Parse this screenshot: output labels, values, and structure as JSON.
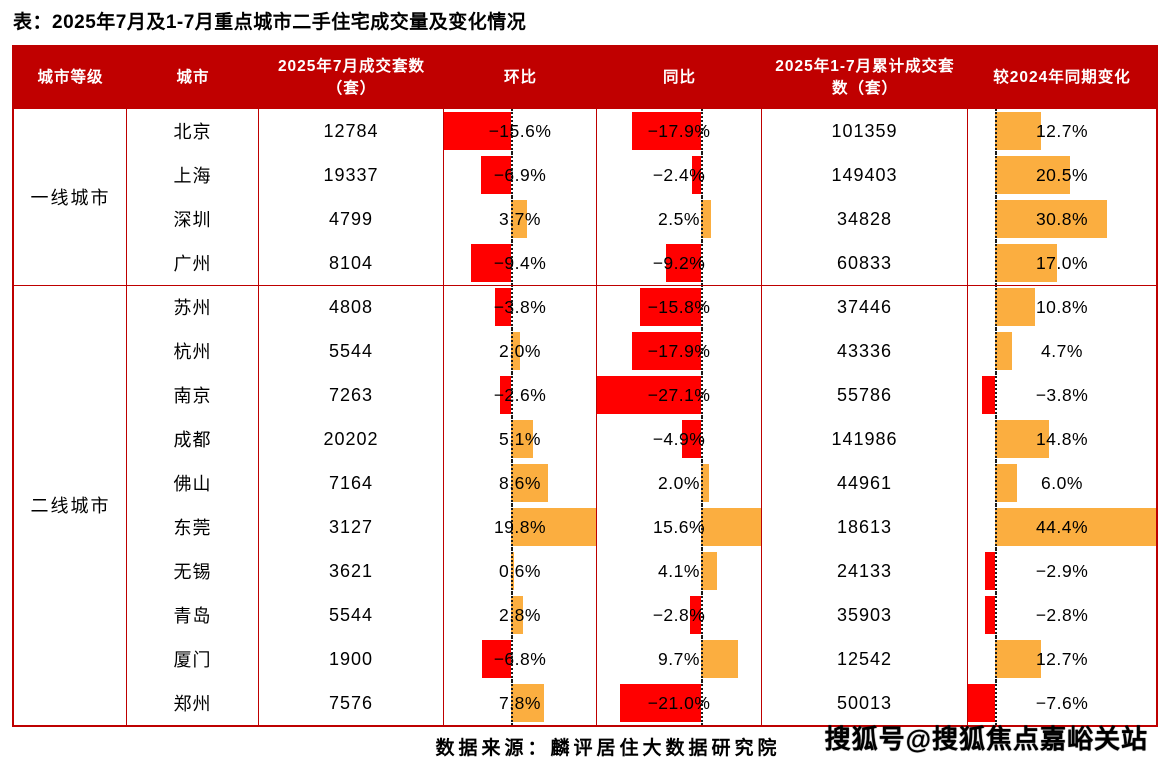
{
  "title": "表：2025年7月及1-7月重点城市二手住宅成交量及变化情况",
  "source_note": "数据来源：麟评居住大数据研究院",
  "watermark": "搜狐号@搜狐焦点嘉峪关站",
  "table": {
    "headers": [
      "城市等级",
      "城市",
      "2025年7月成交套数（套）",
      "环比",
      "同比",
      "2025年1-7月累计成交套数（套）",
      "较2024年同期变化"
    ],
    "tiers": [
      {
        "label": "一线城市",
        "rows": 4
      },
      {
        "label": "二线城市",
        "rows": 10
      }
    ],
    "rows": [
      {
        "tier": "一线城市",
        "city": "北京",
        "jul_volume": 12784,
        "mom_pct": -15.6,
        "yoy_pct": -17.9,
        "cum_volume": 101359,
        "cum_change_pct": 12.7
      },
      {
        "tier": "一线城市",
        "city": "上海",
        "jul_volume": 19337,
        "mom_pct": -6.9,
        "yoy_pct": -2.4,
        "cum_volume": 149403,
        "cum_change_pct": 20.5
      },
      {
        "tier": "一线城市",
        "city": "深圳",
        "jul_volume": 4799,
        "mom_pct": 3.7,
        "yoy_pct": 2.5,
        "cum_volume": 34828,
        "cum_change_pct": 30.8
      },
      {
        "tier": "一线城市",
        "city": "广州",
        "jul_volume": 8104,
        "mom_pct": -9.4,
        "yoy_pct": -9.2,
        "cum_volume": 60833,
        "cum_change_pct": 17.0
      },
      {
        "tier": "二线城市",
        "city": "苏州",
        "jul_volume": 4808,
        "mom_pct": -3.8,
        "yoy_pct": -15.8,
        "cum_volume": 37446,
        "cum_change_pct": 10.8
      },
      {
        "tier": "二线城市",
        "city": "杭州",
        "jul_volume": 5544,
        "mom_pct": 2.0,
        "yoy_pct": -17.9,
        "cum_volume": 43336,
        "cum_change_pct": 4.7
      },
      {
        "tier": "二线城市",
        "city": "南京",
        "jul_volume": 7263,
        "mom_pct": -2.6,
        "yoy_pct": -27.1,
        "cum_volume": 55786,
        "cum_change_pct": -3.8
      },
      {
        "tier": "二线城市",
        "city": "成都",
        "jul_volume": 20202,
        "mom_pct": 5.1,
        "yoy_pct": -4.9,
        "cum_volume": 141986,
        "cum_change_pct": 14.8
      },
      {
        "tier": "二线城市",
        "city": "佛山",
        "jul_volume": 7164,
        "mom_pct": 8.6,
        "yoy_pct": 2.0,
        "cum_volume": 44961,
        "cum_change_pct": 6.0
      },
      {
        "tier": "二线城市",
        "city": "东莞",
        "jul_volume": 3127,
        "mom_pct": 19.8,
        "yoy_pct": 15.6,
        "cum_volume": 18613,
        "cum_change_pct": 44.4
      },
      {
        "tier": "二线城市",
        "city": "无锡",
        "jul_volume": 3621,
        "mom_pct": 0.6,
        "yoy_pct": 4.1,
        "cum_volume": 24133,
        "cum_change_pct": -2.9
      },
      {
        "tier": "二线城市",
        "city": "青岛",
        "jul_volume": 5544,
        "mom_pct": 2.8,
        "yoy_pct": -2.8,
        "cum_volume": 35903,
        "cum_change_pct": -2.8
      },
      {
        "tier": "二线城市",
        "city": "厦门",
        "jul_volume": 1900,
        "mom_pct": -6.8,
        "yoy_pct": 9.7,
        "cum_volume": 12542,
        "cum_change_pct": 12.7
      },
      {
        "tier": "二线城市",
        "city": "郑州",
        "jul_volume": 7576,
        "mom_pct": 7.8,
        "yoy_pct": -21.0,
        "cum_volume": 50013,
        "cum_change_pct": -7.6
      }
    ],
    "colors": {
      "header_bg": "#C00000",
      "border": "#BE0000",
      "negative_bar": "#FF0000",
      "positive_bar": "#FBAE40",
      "header_text": "#FFFFFF",
      "body_text": "#000000"
    }
  },
  "chart_data": {
    "type": "table",
    "title": "表：2025年7月及1-7月重点城市二手住宅成交量及变化情况",
    "columns": [
      "城市等级",
      "城市",
      "2025年7月成交套数（套）",
      "环比",
      "同比",
      "2025年1-7月累计成交套数（套）",
      "较2024年同期变化"
    ],
    "units": {
      "环比": "%",
      "同比": "%",
      "较2024年同期变化": "%"
    },
    "bar_style": "excel-databar, negative red left of dotted zero axis, positive orange right",
    "rows": [
      [
        "一线城市",
        "北京",
        12784,
        -15.6,
        -17.9,
        101359,
        12.7
      ],
      [
        "一线城市",
        "上海",
        19337,
        -6.9,
        -2.4,
        149403,
        20.5
      ],
      [
        "一线城市",
        "深圳",
        4799,
        3.7,
        2.5,
        34828,
        30.8
      ],
      [
        "一线城市",
        "广州",
        8104,
        -9.4,
        -9.2,
        60833,
        17.0
      ],
      [
        "二线城市",
        "苏州",
        4808,
        -3.8,
        -15.8,
        37446,
        10.8
      ],
      [
        "二线城市",
        "杭州",
        5544,
        2.0,
        -17.9,
        43336,
        4.7
      ],
      [
        "二线城市",
        "南京",
        7263,
        -2.6,
        -27.1,
        55786,
        -3.8
      ],
      [
        "二线城市",
        "成都",
        20202,
        5.1,
        -4.9,
        141986,
        14.8
      ],
      [
        "二线城市",
        "佛山",
        7164,
        8.6,
        2.0,
        44961,
        6.0
      ],
      [
        "二线城市",
        "东莞",
        3127,
        19.8,
        15.6,
        18613,
        44.4
      ],
      [
        "二线城市",
        "无锡",
        3621,
        0.6,
        4.1,
        24133,
        -2.9
      ],
      [
        "二线城市",
        "青岛",
        5544,
        2.8,
        -2.8,
        35903,
        -2.8
      ],
      [
        "二线城市",
        "厦门",
        1900,
        -6.8,
        9.7,
        12542,
        12.7
      ],
      [
        "二线城市",
        "郑州",
        7576,
        7.8,
        -21.0,
        50013,
        -7.6
      ]
    ],
    "source": "数据来源：麟评居住大数据研究院"
  }
}
